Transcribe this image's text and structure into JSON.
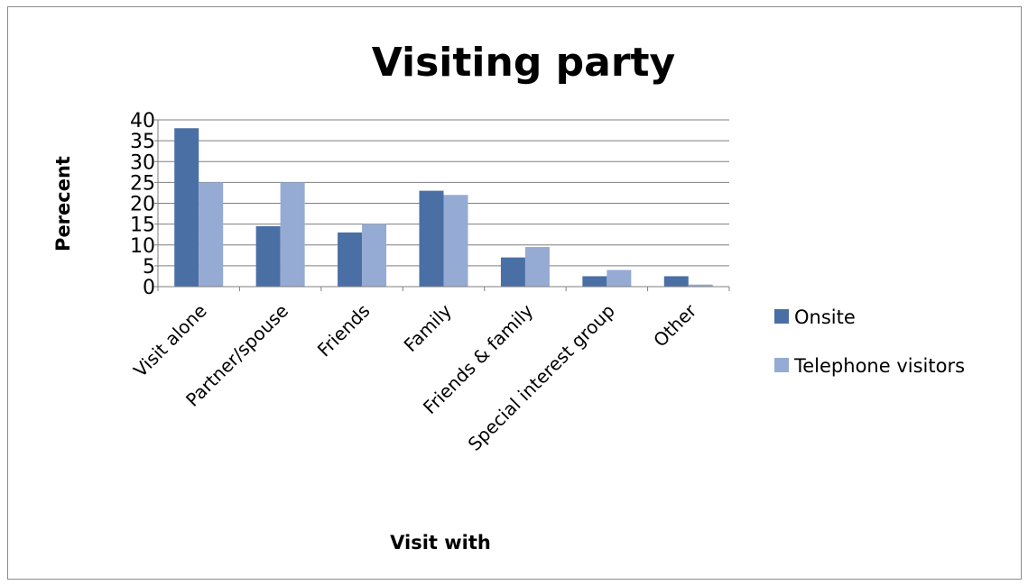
{
  "chart_data": {
    "type": "bar",
    "title": "Visiting party",
    "xlabel": "Visit with",
    "ylabel": "Perecent",
    "categories": [
      "Visit alone",
      "Partner/spouse",
      "Friends",
      "Family",
      "Friends & family",
      "Special interest group",
      "Other"
    ],
    "series": [
      {
        "name": "Onsite",
        "color": "#4a6fa5",
        "values": [
          38,
          14.5,
          13,
          23,
          7,
          2.5,
          2.5
        ]
      },
      {
        "name": "Telephone visitors",
        "color": "#95abd3",
        "values": [
          25,
          25,
          15,
          22,
          9.5,
          4,
          0.5
        ]
      }
    ],
    "ylim": [
      0,
      40
    ],
    "yticks": [
      0,
      5,
      10,
      15,
      20,
      25,
      30,
      35,
      40
    ],
    "grid": true,
    "legend_position": "right"
  }
}
